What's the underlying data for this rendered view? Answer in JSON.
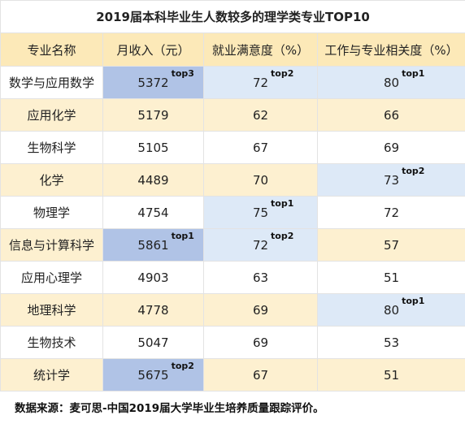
{
  "title": "2019届本科毕业生人数较多的理学类专业TOP10",
  "headers": [
    "专业名称",
    "月收入（元）",
    "就业满意度（%）",
    "工作与专业相关度（%）"
  ],
  "rows": [
    {
      "major": "数学与应用数学",
      "income": "5372",
      "income_badge": "top3",
      "satisfaction": "72",
      "satisfaction_badge": "top2",
      "relevance": "80",
      "relevance_badge": "top1"
    },
    {
      "major": "应用化学",
      "income": "5179",
      "income_badge": "",
      "satisfaction": "62",
      "satisfaction_badge": "",
      "relevance": "66",
      "relevance_badge": ""
    },
    {
      "major": "生物科学",
      "income": "5105",
      "income_badge": "",
      "satisfaction": "67",
      "satisfaction_badge": "",
      "relevance": "69",
      "relevance_badge": ""
    },
    {
      "major": "化学",
      "income": "4489",
      "income_badge": "",
      "satisfaction": "70",
      "satisfaction_badge": "",
      "relevance": "73",
      "relevance_badge": "top2"
    },
    {
      "major": "物理学",
      "income": "4754",
      "income_badge": "",
      "satisfaction": "75",
      "satisfaction_badge": "top1",
      "relevance": "72",
      "relevance_badge": ""
    },
    {
      "major": "信息与计算科学",
      "income": "5861",
      "income_badge": "top1",
      "satisfaction": "72",
      "satisfaction_badge": "top2",
      "relevance": "57",
      "relevance_badge": ""
    },
    {
      "major": "应用心理学",
      "income": "4903",
      "income_badge": "",
      "satisfaction": "63",
      "satisfaction_badge": "",
      "relevance": "51",
      "relevance_badge": ""
    },
    {
      "major": "地理科学",
      "income": "4778",
      "income_badge": "",
      "satisfaction": "69",
      "satisfaction_badge": "",
      "relevance": "80",
      "relevance_badge": "top1"
    },
    {
      "major": "生物技术",
      "income": "5047",
      "income_badge": "",
      "satisfaction": "69",
      "satisfaction_badge": "",
      "relevance": "53",
      "relevance_badge": ""
    },
    {
      "major": "统计学",
      "income": "5675",
      "income_badge": "top2",
      "satisfaction": "67",
      "satisfaction_badge": "",
      "relevance": "51",
      "relevance_badge": ""
    }
  ],
  "source": "数据来源：麦可思-中国2019届大学毕业生培养质量跟踪评价。",
  "colors": {
    "header_bg": "#fce9b8",
    "stripe_bg": "#fdf0d0",
    "highlight_strong": "#b0c3e6",
    "highlight_light": "#dde9f7"
  }
}
